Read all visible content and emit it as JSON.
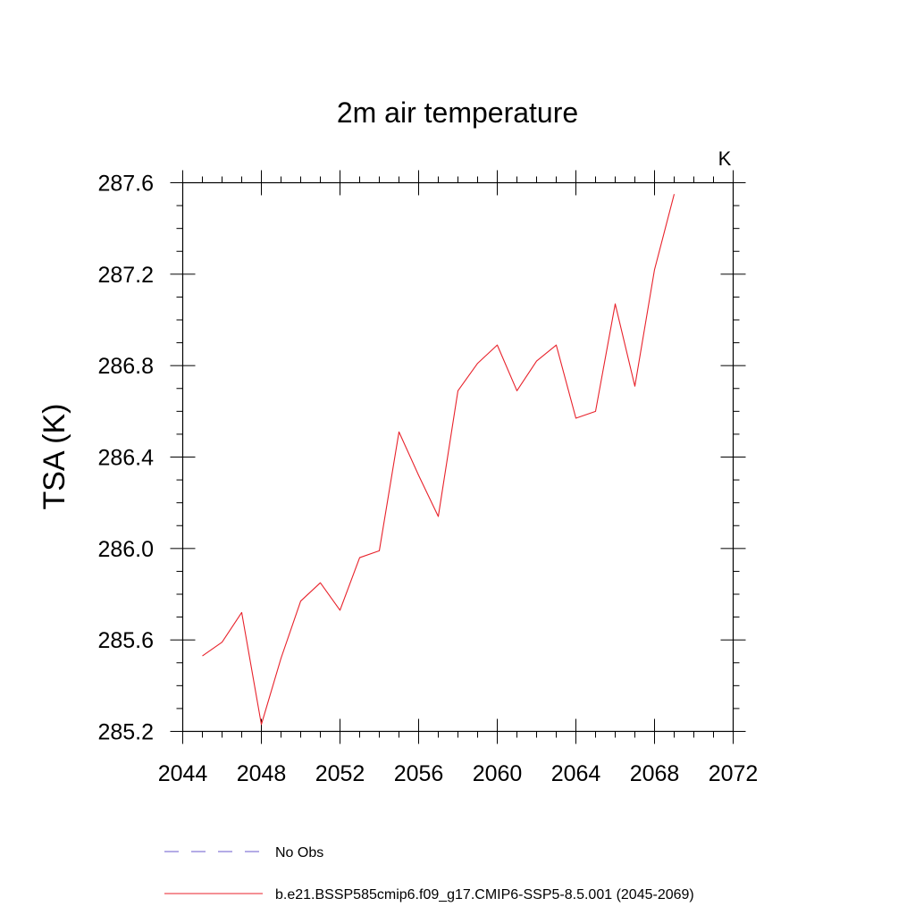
{
  "chart_data": {
    "type": "line",
    "title": "2m air temperature",
    "units_label": "K",
    "xlabel": "",
    "ylabel": "TSA  (K)",
    "xlim": [
      2044,
      2072
    ],
    "ylim": [
      285.2,
      287.6
    ],
    "x_ticks": [
      2044,
      2048,
      2052,
      2056,
      2060,
      2064,
      2068,
      2072
    ],
    "x_tick_labels": [
      "2044",
      "2048",
      "2052",
      "2056",
      "2060",
      "2064",
      "2068",
      "2072"
    ],
    "y_ticks": [
      285.2,
      285.6,
      286.0,
      286.4,
      286.8,
      287.2,
      287.6
    ],
    "y_tick_labels": [
      "285.2",
      "285.6",
      "286.0",
      "286.4",
      "286.8",
      "287.2",
      "287.6"
    ],
    "grid": false,
    "legend_position": "bottom",
    "series": [
      {
        "name": "b.e21.BSSP585cmip6.f09_g17.CMIP6-SSP5-8.5.001 (2045-2069)",
        "color": "#e8222b",
        "style": "solid",
        "x": [
          2045,
          2046,
          2047,
          2048,
          2049,
          2050,
          2051,
          2052,
          2053,
          2054,
          2055,
          2056,
          2057,
          2058,
          2059,
          2060,
          2061,
          2062,
          2063,
          2064,
          2065,
          2066,
          2067,
          2068,
          2069
        ],
        "values": [
          285.53,
          285.59,
          285.72,
          285.23,
          285.52,
          285.77,
          285.85,
          285.73,
          285.96,
          285.99,
          286.51,
          286.32,
          286.14,
          286.69,
          286.81,
          286.89,
          286.69,
          286.82,
          286.89,
          286.57,
          286.6,
          287.07,
          286.71,
          287.22,
          287.55
        ]
      }
    ],
    "legend": [
      {
        "label": "No Obs",
        "color": "#6a5acd",
        "style": "dashed"
      },
      {
        "label": "b.e21.BSSP585cmip6.f09_g17.CMIP6-SSP5-8.5.001 (2045-2069)",
        "color": "#e8222b",
        "style": "solid"
      }
    ]
  }
}
